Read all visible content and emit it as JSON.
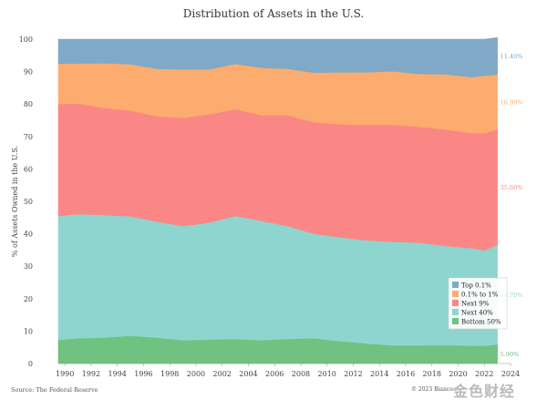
{
  "title": "Distribution of Assets in the U.S.",
  "source": "Source: The Federal Reserve",
  "copyright": "© 2023 Bianco...",
  "watermark": "金色财经",
  "chart_data": {
    "type": "area",
    "stacked": true,
    "title": "Distribution of Assets in the U.S.",
    "xlabel": "",
    "ylabel": "% of Assets Owned in the U.S.",
    "xlim": [
      1989.5,
      2024
    ],
    "ylim": [
      0,
      100
    ],
    "x_ticks": [
      1990,
      1992,
      1994,
      1996,
      1998,
      2000,
      2002,
      2004,
      2006,
      2008,
      2010,
      2012,
      2014,
      2016,
      2018,
      2020,
      2022,
      2024
    ],
    "y_ticks": [
      0,
      10,
      20,
      30,
      40,
      50,
      60,
      70,
      80,
      90,
      100
    ],
    "grid": false,
    "legend_position": "bottom-right",
    "x": [
      1989.5,
      1991,
      1993,
      1995,
      1997,
      1999,
      2001,
      2003,
      2005,
      2007,
      2009,
      2011,
      2013,
      2015,
      2017,
      2019,
      2021,
      2022,
      2023
    ],
    "series": [
      {
        "name": "Bottom 50%",
        "color": "#6fc27f",
        "end_label": "5.90%",
        "values": [
          7.3,
          7.8,
          8.0,
          8.6,
          8.0,
          7.2,
          7.4,
          7.6,
          7.2,
          7.6,
          7.8,
          6.9,
          6.2,
          5.6,
          5.6,
          5.7,
          5.5,
          5.5,
          5.9
        ]
      },
      {
        "name": "Next 40%",
        "color": "#8fd5cf",
        "end_label": "30.70%",
        "values": [
          38.2,
          38.3,
          37.8,
          36.8,
          35.8,
          35.2,
          36.0,
          37.9,
          36.8,
          34.8,
          32.2,
          32.0,
          31.8,
          31.9,
          31.7,
          30.6,
          30.1,
          29.4,
          30.7
        ]
      },
      {
        "name": "Next 9%",
        "color": "#fa8785",
        "end_label": "35.60%",
        "values": [
          34.5,
          34.1,
          33.0,
          32.6,
          32.5,
          33.3,
          33.5,
          32.9,
          32.6,
          34.2,
          34.4,
          34.9,
          35.6,
          36.1,
          35.7,
          35.9,
          35.5,
          36.1,
          35.6
        ]
      },
      {
        "name": "0.1% to 1%",
        "color": "#fcac6e",
        "end_label": "16.90%",
        "values": [
          12.5,
          12.3,
          13.8,
          14.3,
          14.6,
          15.0,
          13.8,
          14.0,
          14.6,
          14.3,
          15.3,
          16.0,
          16.2,
          16.5,
          16.3,
          17.0,
          17.2,
          17.8,
          16.9
        ]
      },
      {
        "name": "Top 0.1%",
        "color": "#7fa9c6",
        "end_label": "11.40%",
        "values": [
          7.5,
          7.5,
          7.4,
          7.7,
          9.1,
          9.3,
          9.3,
          7.6,
          8.8,
          9.1,
          10.3,
          10.2,
          10.2,
          9.9,
          10.7,
          10.8,
          11.7,
          11.2,
          11.4
        ]
      }
    ]
  }
}
